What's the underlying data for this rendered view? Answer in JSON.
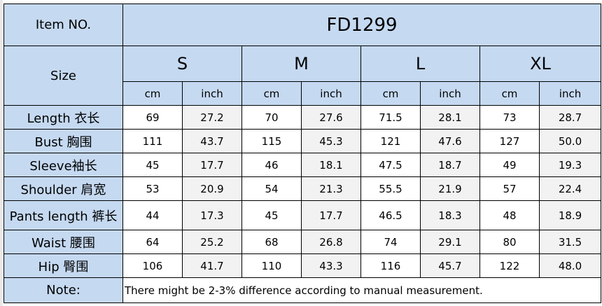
{
  "table": {
    "item_no_label": "Item NO.",
    "item_no_value": "FD1299",
    "size_label": "Size",
    "sizes": [
      "S",
      "M",
      "L",
      "XL"
    ],
    "unit_cm": "cm",
    "unit_inch": "inch",
    "rows": [
      {
        "label": "Length 衣长",
        "values": [
          "69",
          "27.2",
          "70",
          "27.6",
          "71.5",
          "28.1",
          "73",
          "28.7"
        ]
      },
      {
        "label": "Bust  胸围",
        "values": [
          "111",
          "43.7",
          "115",
          "45.3",
          "121",
          "47.6",
          "127",
          "50.0"
        ]
      },
      {
        "label": "Sleeve袖长",
        "values": [
          "45",
          "17.7",
          "46",
          "18.1",
          "47.5",
          "18.7",
          "49",
          "19.3"
        ]
      },
      {
        "label": "Shoulder 肩宽",
        "values": [
          "53",
          "20.9",
          "54",
          "21.3",
          "55.5",
          "21.9",
          "57",
          "22.4"
        ]
      },
      {
        "label": "Pants length 裤长",
        "values": [
          "44",
          "17.3",
          "45",
          "17.7",
          "46.5",
          "18.3",
          "48",
          "18.9"
        ]
      },
      {
        "label": "Waist 腰围",
        "values": [
          "64",
          "25.2",
          "68",
          "26.8",
          "74",
          "29.1",
          "80",
          "31.5"
        ]
      },
      {
        "label": "Hip 臀围",
        "values": [
          "106",
          "41.7",
          "110",
          "43.3",
          "116",
          "45.7",
          "122",
          "48.0"
        ]
      }
    ],
    "note_label": "Note:",
    "note_text": "There might be 2-3% difference according to manual measurement."
  },
  "colors": {
    "header_blue": "#c5d9f1",
    "cell_grey": "#f2f2f2",
    "border": "#000000"
  }
}
